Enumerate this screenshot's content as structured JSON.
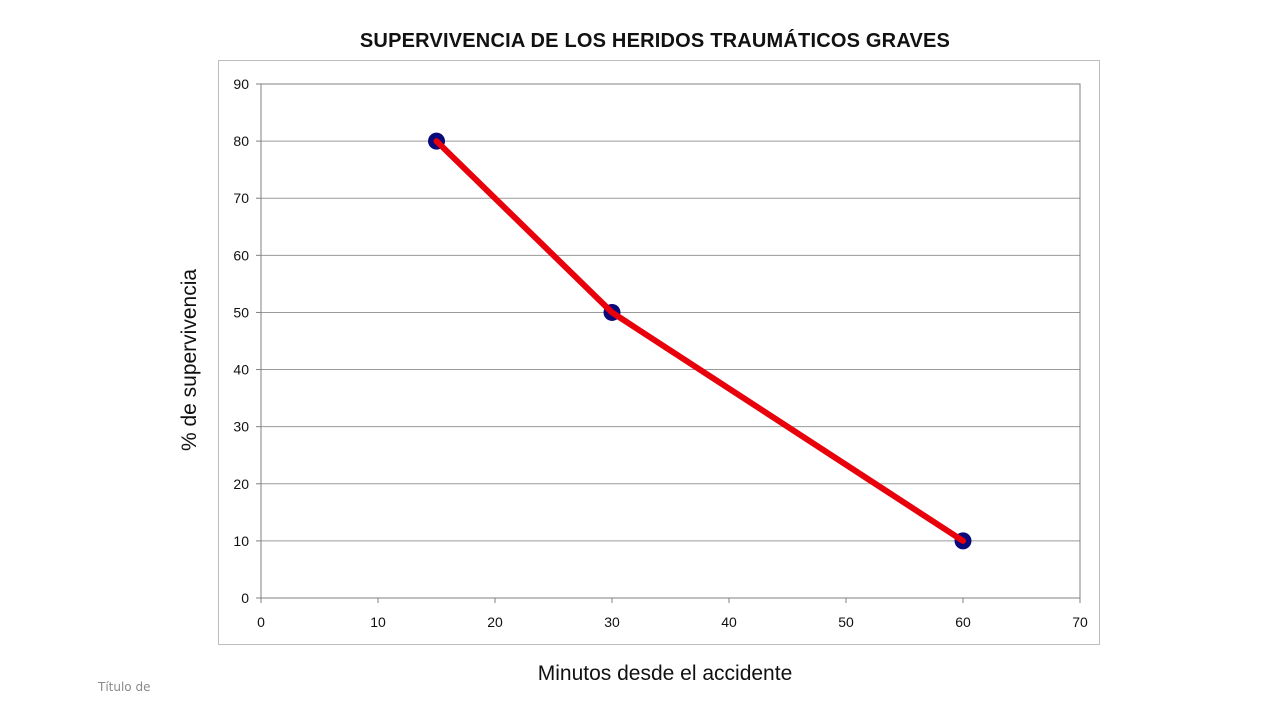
{
  "footer": {
    "text": "Título de"
  },
  "chart_data": {
    "type": "line",
    "title": "SUPERVIVENCIA DE LOS HERIDOS TRAUMÁTICOS GRAVES",
    "xlabel": "Minutos desde el accidente",
    "ylabel": "% de supervivencia",
    "xlim": [
      0,
      70
    ],
    "ylim": [
      0,
      90
    ],
    "xticks": [
      0,
      10,
      20,
      30,
      40,
      50,
      60,
      70
    ],
    "yticks": [
      0,
      10,
      20,
      30,
      40,
      50,
      60,
      70,
      80,
      90
    ],
    "grid": "horizontal",
    "legend": "none",
    "series": [
      {
        "x": [
          15,
          30,
          60
        ],
        "y": [
          80,
          50,
          10
        ],
        "line_color": "#e8000b",
        "marker_color": "#0a0a7a"
      }
    ]
  }
}
